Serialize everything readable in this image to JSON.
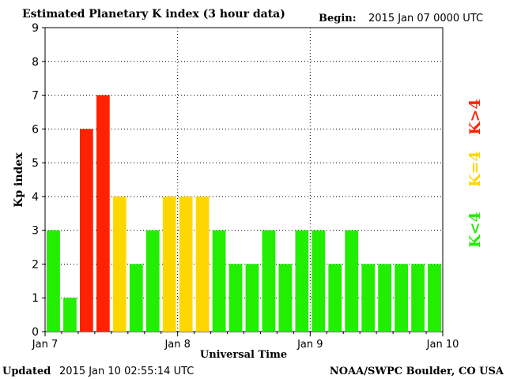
{
  "header": {
    "title": "Estimated Planetary K index (3 hour data)",
    "begin_label": "Begin:",
    "begin_value": "2015 Jan 07 0000 UTC"
  },
  "footer": {
    "updated_label": "Updated",
    "updated_value": "2015 Jan 10 02:55:14 UTC",
    "credit": "NOAA/SWPC Boulder, CO USA"
  },
  "legend": {
    "low": "K<4",
    "equal": "K=4",
    "high": "K>4"
  },
  "colors": {
    "low": "#22ee00",
    "equal": "#ffd700",
    "high": "#ff2200",
    "axis": "#000000",
    "grid": "#000000"
  },
  "chart_data": {
    "type": "bar",
    "title": "Estimated Planetary K index (3 hour data)",
    "xlabel": "Universal Time",
    "ylabel": "Kp index",
    "ylim": [
      0,
      9
    ],
    "yticks": [
      0,
      1,
      2,
      3,
      4,
      5,
      6,
      7,
      8,
      9
    ],
    "xticks": [
      "Jan 7",
      "Jan 8",
      "Jan 9",
      "Jan 10"
    ],
    "bars_per_day": 8,
    "grid": "dotted",
    "values": [
      3,
      1,
      6,
      7,
      4,
      2,
      3,
      4,
      4,
      4,
      3,
      2,
      2,
      3,
      2,
      3,
      3,
      2,
      3,
      2,
      2,
      2,
      2,
      2
    ]
  }
}
